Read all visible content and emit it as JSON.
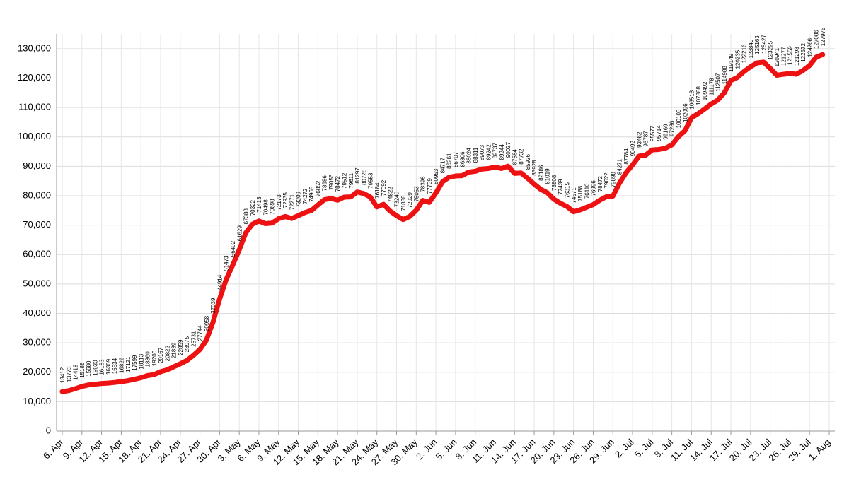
{
  "chart_data": {
    "type": "line",
    "categories": [
      "6. Apr",
      null,
      null,
      "9. Apr",
      null,
      null,
      "12. Apr",
      null,
      null,
      "15. Apr",
      null,
      null,
      "18. Apr",
      null,
      null,
      "21. Apr",
      null,
      null,
      "24. Apr",
      null,
      null,
      "27. Apr",
      null,
      null,
      "30. Apr",
      null,
      null,
      "3. May",
      null,
      null,
      "6. May",
      null,
      null,
      "9. May",
      null,
      null,
      "12. May",
      null,
      null,
      "15. May",
      null,
      null,
      "18. May",
      null,
      null,
      "21. May",
      null,
      null,
      "24. May",
      null,
      null,
      "27. May",
      null,
      null,
      "30. May",
      null,
      null,
      "2. Jun",
      null,
      null,
      "5. Jun",
      null,
      null,
      "8. Jun",
      null,
      null,
      "11. Jun",
      null,
      null,
      "14. Jun",
      null,
      null,
      "17. Jun",
      null,
      null,
      "20. Jun",
      null,
      null,
      "23. Jun",
      null,
      null,
      "26. Jun",
      null,
      null,
      "29. Jun",
      null,
      null,
      "2. Jul",
      null,
      null,
      "5. Jul",
      null,
      null,
      "8. Jul",
      null,
      null,
      "11. Jul",
      null,
      null,
      "14. Jul",
      null,
      null,
      "17. Jul",
      null,
      null,
      "20. Jul",
      null,
      null,
      "23. Jul",
      null,
      null,
      "26. Jul",
      null,
      null,
      "29. Jul",
      null,
      null,
      "1. Aug"
    ],
    "series": [
      {
        "color": "#ee1111",
        "values": [
          13412,
          13773,
          14418,
          15188,
          15680,
          15930,
          16183,
          16309,
          16534,
          16826,
          17121,
          17599,
          18113,
          18860,
          19200,
          20167,
          20822,
          21839,
          22859,
          23975,
          25731,
          27744,
          30958,
          37039,
          44914,
          51473,
          56402,
          61629,
          67388,
          70322,
          71413,
          70498,
          70698,
          72173,
          72935,
          72271,
          73209,
          74272,
          74965,
          76852,
          78686,
          79056,
          78472,
          79512,
          79611,
          81297,
          80728,
          79553,
          76184,
          77092,
          74822,
          73240,
          71888,
          72929,
          75053,
          78398,
          77739,
          80953,
          84717,
          86261,
          86707,
          86806,
          88024,
          88311,
          89073,
          89242,
          89737,
          89244,
          90027,
          87584,
          87732,
          85926,
          83928,
          82186,
          81019,
          78808,
          77439,
          76315,
          74571,
          75188,
          76110,
          76996,
          78472,
          79622,
          79898,
          84271,
          87784,
          90492,
          93462,
          93787,
          95577,
          95714,
          96169,
          97286,
          100103,
          102096,
          106513,
          107888,
          109492,
          111178,
          112507,
          114988,
          119149,
          120235,
          122216,
          123849,
          125163,
          125427,
          123295,
          120941,
          121277,
          121559,
          121298,
          122572,
          124266,
          127086,
          127975,
          null
        ]
      }
    ],
    "ylim": [
      0,
      135000
    ],
    "yticks": [
      0,
      {
        "value": 10000,
        "label": "10,000"
      },
      {
        "value": 20000,
        "label": "20,000"
      },
      {
        "value": 30000,
        "label": "30,000"
      },
      {
        "value": 40000,
        "label": "40,000"
      },
      {
        "value": 50000,
        "label": "50,000"
      },
      {
        "value": 60000,
        "label": "60,000"
      },
      {
        "value": 70000,
        "label": "70,000"
      },
      {
        "value": 80000,
        "label": "80,000"
      },
      {
        "value": 90000,
        "label": "90,000"
      },
      {
        "value": 100000,
        "label": "100,000"
      },
      {
        "value": 110000,
        "label": "110,000"
      },
      {
        "value": 120000,
        "label": "120,000"
      },
      {
        "value": 130000,
        "label": "130,000"
      }
    ],
    "grid": true
  }
}
